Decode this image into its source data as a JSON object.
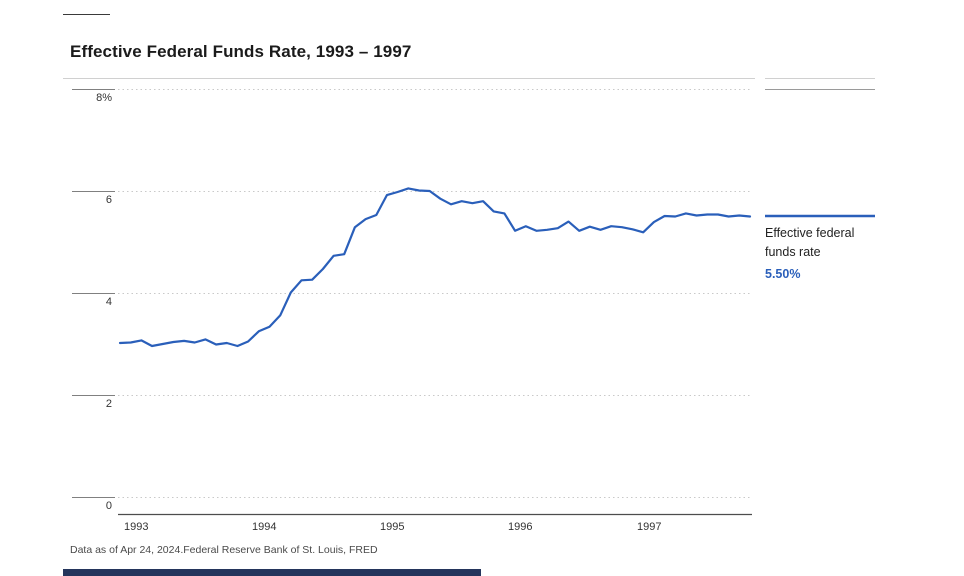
{
  "chart_data": {
    "type": "line",
    "title": "Effective Federal Funds Rate, 1993 – 1997",
    "xlabel": "",
    "ylabel": "",
    "ylim": [
      0,
      8
    ],
    "yticks": [
      "8%",
      "6",
      "4",
      "2",
      "0"
    ],
    "xticks": [
      "1993",
      "1994",
      "1995",
      "1996",
      "1997"
    ],
    "grid": "horizontal-dotted",
    "legend_position": "right",
    "x_frequency": "monthly",
    "x": [
      "1993-01",
      "1993-02",
      "1993-03",
      "1993-04",
      "1993-05",
      "1993-06",
      "1993-07",
      "1993-08",
      "1993-09",
      "1993-10",
      "1993-11",
      "1993-12",
      "1994-01",
      "1994-02",
      "1994-03",
      "1994-04",
      "1994-05",
      "1994-06",
      "1994-07",
      "1994-08",
      "1994-09",
      "1994-10",
      "1994-11",
      "1994-12",
      "1995-01",
      "1995-02",
      "1995-03",
      "1995-04",
      "1995-05",
      "1995-06",
      "1995-07",
      "1995-08",
      "1995-09",
      "1995-10",
      "1995-11",
      "1995-12",
      "1996-01",
      "1996-02",
      "1996-03",
      "1996-04",
      "1996-05",
      "1996-06",
      "1996-07",
      "1996-08",
      "1996-09",
      "1996-10",
      "1996-11",
      "1996-12",
      "1997-01",
      "1997-02",
      "1997-03",
      "1997-04",
      "1997-05",
      "1997-06",
      "1997-07",
      "1997-08",
      "1997-09",
      "1997-10",
      "1997-11",
      "1997-12"
    ],
    "series": [
      {
        "name": "Effective federal funds rate",
        "color": "#2a5fba",
        "values": [
          3.02,
          3.03,
          3.07,
          2.96,
          3.0,
          3.04,
          3.06,
          3.03,
          3.09,
          2.99,
          3.02,
          2.96,
          3.05,
          3.25,
          3.34,
          3.56,
          4.01,
          4.25,
          4.26,
          4.47,
          4.73,
          4.76,
          5.29,
          5.45,
          5.53,
          5.92,
          5.98,
          6.05,
          6.01,
          6.0,
          5.85,
          5.74,
          5.8,
          5.76,
          5.8,
          5.6,
          5.56,
          5.22,
          5.31,
          5.22,
          5.24,
          5.27,
          5.4,
          5.22,
          5.3,
          5.24,
          5.31,
          5.29,
          5.25,
          5.19,
          5.39,
          5.51,
          5.5,
          5.56,
          5.52,
          5.54,
          5.54,
          5.5,
          5.52,
          5.5
        ]
      }
    ],
    "last_value_label": "5.50%"
  },
  "footer": {
    "text": "Data as of Apr 24, 2024.Federal Reserve Bank of St. Louis, FRED"
  },
  "colors": {
    "line": "#2a5fba",
    "grid_dotted": "#c9c9c9",
    "tick_segment": "#808080",
    "axis": "#4d4d4d",
    "rule": "#d0d0d0",
    "accent_bar": "#24355c"
  }
}
